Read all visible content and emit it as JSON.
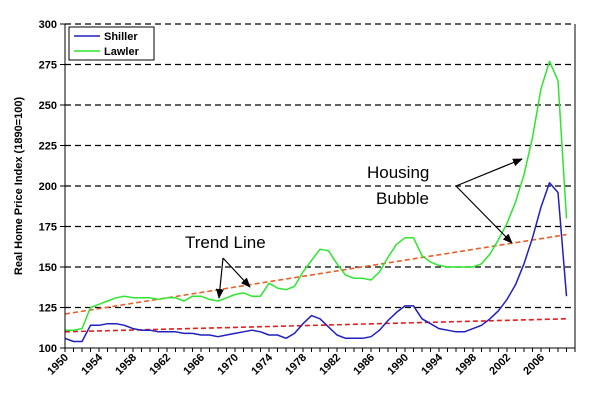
{
  "chart_data": {
    "type": "line",
    "title": "",
    "xlabel": "",
    "ylabel": "Real Home Price Index (1890=100)",
    "xlim": [
      1950,
      2010
    ],
    "ylim": [
      100,
      300
    ],
    "yticks": [
      100,
      125,
      150,
      175,
      200,
      225,
      250,
      275,
      300
    ],
    "xticks": [
      "1950",
      "1954",
      "1958",
      "1962",
      "1966",
      "1970",
      "1974",
      "1978",
      "1982",
      "1986",
      "1990",
      "1994",
      "1998",
      "2002",
      "2006"
    ],
    "grid": "horizontal dashed",
    "legend_position": "top-left",
    "series": [
      {
        "name": "Shiller",
        "color": "#1f1fbf",
        "x": [
          1950,
          1951,
          1952,
          1953,
          1954,
          1955,
          1956,
          1957,
          1958,
          1959,
          1960,
          1961,
          1962,
          1963,
          1964,
          1965,
          1966,
          1967,
          1968,
          1969,
          1970,
          1971,
          1972,
          1973,
          1974,
          1975,
          1976,
          1977,
          1978,
          1979,
          1980,
          1981,
          1982,
          1983,
          1984,
          1985,
          1986,
          1987,
          1988,
          1989,
          1990,
          1991,
          1992,
          1993,
          1994,
          1995,
          1996,
          1997,
          1998,
          1999,
          2000,
          2001,
          2002,
          2003,
          2004,
          2005,
          2006,
          2007,
          2008,
          2009
        ],
        "y": [
          106,
          104,
          104,
          114,
          114,
          115,
          115,
          114,
          112,
          111,
          111,
          110,
          110,
          110,
          109,
          109,
          108,
          108,
          107,
          108,
          109,
          110,
          111,
          110,
          108,
          108,
          106,
          109,
          115,
          120,
          118,
          113,
          108,
          106,
          106,
          106,
          107,
          111,
          117,
          122,
          126,
          126,
          118,
          115,
          112,
          111,
          110,
          110,
          112,
          114,
          118,
          123,
          130,
          139,
          152,
          168,
          187,
          202,
          196,
          132
        ]
      },
      {
        "name": "Lawler",
        "color": "#2ee62e",
        "x": [
          1950,
          1951,
          1952,
          1953,
          1954,
          1955,
          1956,
          1957,
          1958,
          1959,
          1960,
          1961,
          1962,
          1963,
          1964,
          1965,
          1966,
          1967,
          1968,
          1969,
          1970,
          1971,
          1972,
          1973,
          1974,
          1975,
          1976,
          1977,
          1978,
          1979,
          1980,
          1981,
          1982,
          1983,
          1984,
          1985,
          1986,
          1987,
          1988,
          1989,
          1990,
          1991,
          1992,
          1993,
          1994,
          1995,
          1996,
          1997,
          1998,
          1999,
          2000,
          2001,
          2002,
          2003,
          2004,
          2005,
          2006,
          2007,
          2008,
          2009
        ],
        "y": [
          111,
          111,
          112,
          125,
          127,
          129,
          131,
          132,
          131,
          131,
          131,
          130,
          131,
          131,
          129,
          132,
          132,
          130,
          129,
          131,
          133,
          134,
          132,
          132,
          140,
          137,
          136,
          138,
          147,
          154,
          161,
          160,
          152,
          145,
          143,
          143,
          142,
          147,
          156,
          164,
          168,
          168,
          157,
          153,
          151,
          150,
          150,
          150,
          150,
          152,
          158,
          167,
          177,
          190,
          207,
          230,
          260,
          277,
          265,
          180
        ]
      },
      {
        "name": "Trend Line",
        "color": "#e8602a",
        "style": "dashed",
        "x": [
          1950,
          2009
        ],
        "y": [
          121,
          170
        ]
      },
      {
        "name": "Trend Line",
        "color": "#e02020",
        "style": "dashed",
        "x": [
          1950,
          2009
        ],
        "y": [
          110,
          118
        ]
      }
    ],
    "annotations": [
      {
        "text": "Housing",
        "target": "Lawler peak"
      },
      {
        "text": "Bubble",
        "target": "Shiller peak"
      },
      {
        "text": "Trend Line",
        "target": "trend lines"
      }
    ]
  },
  "legend": {
    "items": [
      {
        "label": "Shiller",
        "color": "#1f1fbf"
      },
      {
        "label": "Lawler",
        "color": "#2ee62e"
      }
    ]
  },
  "annotations": {
    "housing": "Housing",
    "bubble": "Bubble",
    "trend": "Trend Line"
  }
}
